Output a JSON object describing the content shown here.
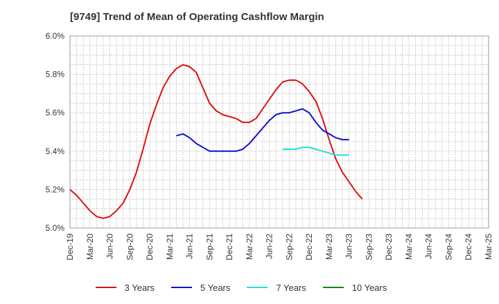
{
  "chart_data": {
    "type": "line",
    "title": "[9749]  Trend of Mean of Operating Cashflow Margin",
    "xlabel": "",
    "ylabel": "",
    "x_ticks": [
      "Dec-19",
      "Mar-20",
      "Jun-20",
      "Sep-20",
      "Dec-20",
      "Mar-21",
      "Jun-21",
      "Sep-21",
      "Dec-21",
      "Mar-22",
      "Jun-22",
      "Sep-22",
      "Dec-22",
      "Mar-23",
      "Jun-23",
      "Sep-23",
      "Dec-23",
      "Mar-24",
      "Jun-24",
      "Sep-24",
      "Dec-24",
      "Mar-25"
    ],
    "y_ticks": [
      "5.0%",
      "5.2%",
      "5.4%",
      "5.6%",
      "5.8%",
      "6.0%"
    ],
    "ylim": [
      5.0,
      6.0
    ],
    "grid": true,
    "legend_position": "bottom",
    "series": [
      {
        "name": "3 Years",
        "color": "#dd1111",
        "start_index": 0,
        "values": [
          5.2,
          5.17,
          5.13,
          5.09,
          5.06,
          5.05,
          5.06,
          5.09,
          5.13,
          5.2,
          5.29,
          5.41,
          5.54,
          5.64,
          5.73,
          5.79,
          5.83,
          5.85,
          5.84,
          5.81,
          5.73,
          5.65,
          5.61,
          5.59,
          5.58,
          5.57,
          5.55,
          5.55,
          5.57,
          5.62,
          5.67,
          5.72,
          5.76,
          5.77,
          5.77,
          5.75,
          5.71,
          5.66,
          5.57,
          5.46,
          5.36,
          5.29,
          5.24,
          5.19,
          5.15
        ]
      },
      {
        "name": "5 Years",
        "color": "#1111cc",
        "start_index": 16,
        "values": [
          5.48,
          5.49,
          5.47,
          5.44,
          5.42,
          5.4,
          5.4,
          5.4,
          5.4,
          5.4,
          5.41,
          5.44,
          5.48,
          5.52,
          5.56,
          5.59,
          5.6,
          5.6,
          5.61,
          5.62,
          5.6,
          5.55,
          5.51,
          5.49,
          5.47,
          5.46,
          5.46
        ]
      },
      {
        "name": "7 Years",
        "color": "#22dddd",
        "start_index": 32,
        "values": [
          5.41,
          5.41,
          5.41,
          5.42,
          5.42,
          5.41,
          5.4,
          5.39,
          5.38,
          5.38,
          5.38
        ]
      },
      {
        "name": "10 Years",
        "color": "#118811",
        "start_index": 0,
        "values": []
      }
    ]
  }
}
